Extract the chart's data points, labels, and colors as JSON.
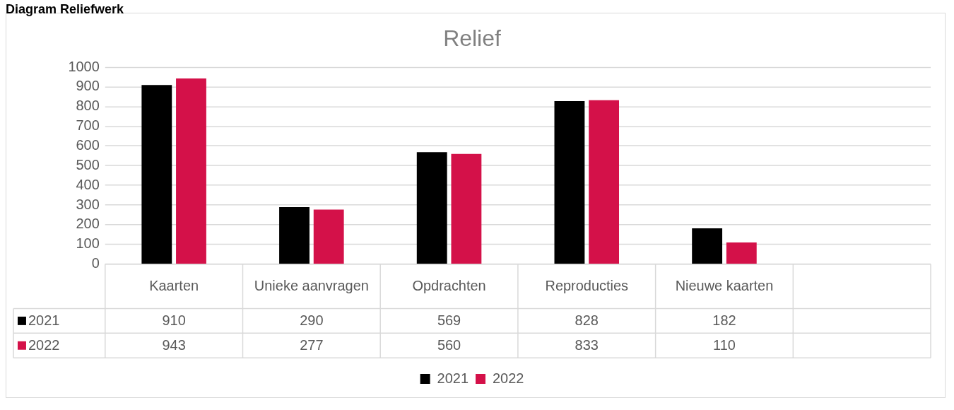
{
  "chart_data": {
    "type": "bar",
    "title": "Relief",
    "annotations": [
      "Diagram Reliefwerk"
    ],
    "categories": [
      "Kaarten",
      "Unieke aanvragen",
      "Opdrachten",
      "Reproducties",
      "Nieuwe kaarten",
      null
    ],
    "series": [
      {
        "name": "2021",
        "color": "#000000",
        "values": [
          910,
          290,
          569,
          828,
          182,
          null
        ]
      },
      {
        "name": "2022",
        "color": "#d41149",
        "values": [
          943,
          277,
          560,
          833,
          110,
          null
        ]
      }
    ],
    "ylim": [
      0,
      1000
    ],
    "yticks": [
      0,
      100,
      200,
      300,
      400,
      500,
      600,
      700,
      800,
      900,
      1000
    ],
    "grid": "y",
    "legend": "bottom",
    "data_labels": true
  }
}
